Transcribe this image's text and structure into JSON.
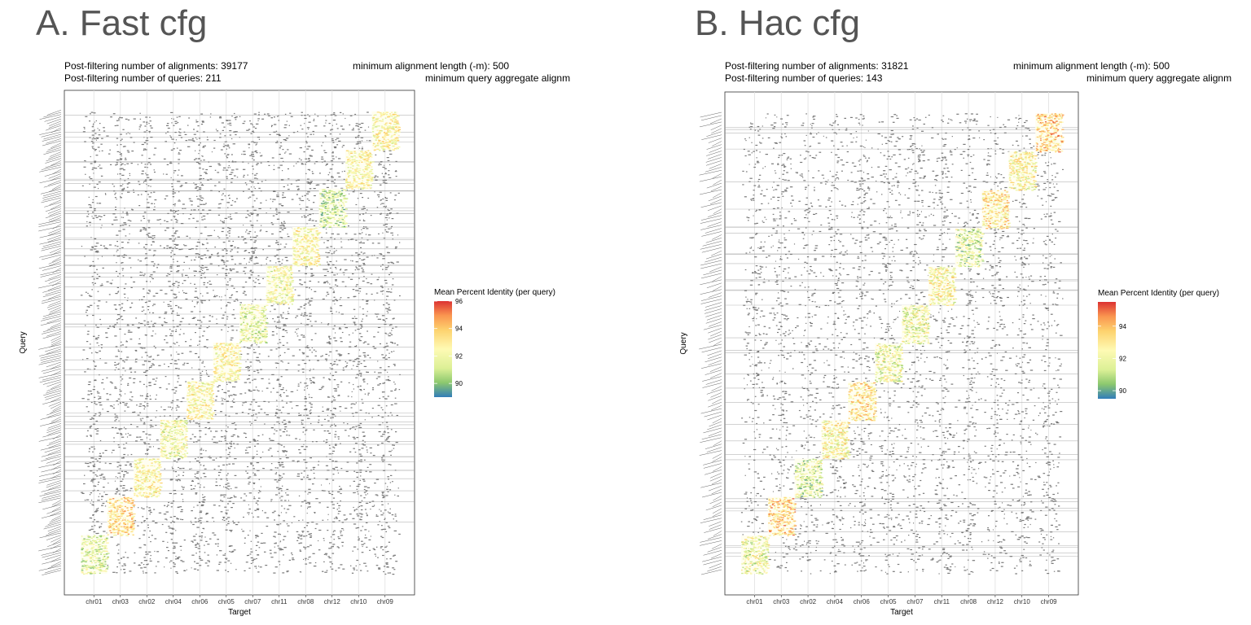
{
  "panels": [
    {
      "title": "A. Fast cfg",
      "info": {
        "alignments": "Post-filtering number of alignments: 39177",
        "queries": "Post-filtering number of queries: 211",
        "min_length": "minimum alignment length (-m): 500",
        "min_query": "minimum query aggregate alignm"
      }
    },
    {
      "title": "B. Hac cfg",
      "info": {
        "alignments": "Post-filtering number of alignments: 31821",
        "queries": "Post-filtering number of queries: 143",
        "min_length": "minimum alignment length (-m): 500",
        "min_query": "minimum query aggregate alignm"
      }
    }
  ],
  "chart_data": [
    {
      "type": "scatter",
      "title": "A. Fast cfg",
      "xlabel": "Target",
      "ylabel": "Query",
      "categories": [
        "chr01",
        "chr03",
        "chr02",
        "chr04",
        "chr06",
        "chr05",
        "chr07",
        "chr11",
        "chr08",
        "chr12",
        "chr10",
        "chr09"
      ],
      "query_count": 211,
      "alignment_count": 39177,
      "legend": {
        "title": "Mean Percent Identity (per query)",
        "ticks": [
          90,
          92,
          94,
          96
        ],
        "range": [
          89,
          96
        ],
        "position": "right"
      },
      "diagonal_identity": [
        91.5,
        93.5,
        92.5,
        92.0,
        92.5,
        92.5,
        91.5,
        92.0,
        92.5,
        91.0,
        92.5,
        92.5
      ],
      "colors": {
        "background_points": "#7a7a7a",
        "low": "#3a78b4",
        "mid": "#fdf9b0",
        "high": "#d73027"
      },
      "grid": true
    },
    {
      "type": "scatter",
      "title": "B. Hac cfg",
      "xlabel": "Target",
      "ylabel": "Query",
      "categories": [
        "chr01",
        "chr03",
        "chr02",
        "chr04",
        "chr06",
        "chr05",
        "chr07",
        "chr11",
        "chr08",
        "chr12",
        "chr10",
        "chr09"
      ],
      "query_count": 143,
      "alignment_count": 31821,
      "legend": {
        "title": "Mean Percent Identity (per query)",
        "ticks": [
          90,
          92,
          94
        ],
        "range": [
          89.5,
          95.5
        ],
        "position": "right"
      },
      "diagonal_identity": [
        92.0,
        93.5,
        91.5,
        92.5,
        93.0,
        92.0,
        92.0,
        92.5,
        91.5,
        93.0,
        92.5,
        93.5
      ],
      "colors": {
        "background_points": "#7a7a7a",
        "low": "#3a78b4",
        "mid": "#fdf9b0",
        "high": "#d73027"
      },
      "grid": true
    }
  ]
}
